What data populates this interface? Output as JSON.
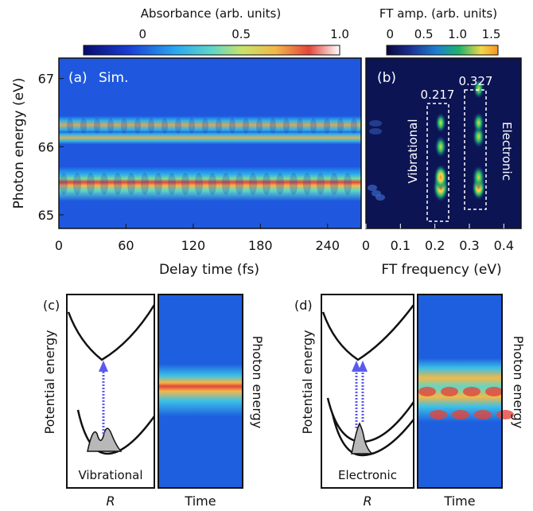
{
  "colorbar_left": {
    "title": "Absorbance (arb. units)",
    "ticks": [
      "0",
      "0.5",
      "1.0"
    ],
    "range": [
      -0.3,
      1.0
    ],
    "tick_values": [
      0,
      0.5,
      1.0
    ]
  },
  "colorbar_right": {
    "title": "FT amp. (arb. units)",
    "ticks": [
      "0",
      "0.5",
      "1.0",
      "1.5"
    ],
    "range": [
      -0.05,
      1.6
    ],
    "tick_values": [
      0,
      0.5,
      1.0,
      1.5
    ]
  },
  "panel_a": {
    "label": "(a)",
    "tag": "Sim.",
    "xlabel": "Delay time (fs)",
    "ylabel": "Photon energy (eV)",
    "xticks": [
      "0",
      "60",
      "120",
      "180",
      "240"
    ],
    "yticks": [
      "67",
      "66",
      "65"
    ]
  },
  "panel_b": {
    "label": "(b)",
    "xlabel": "FT frequency (eV)",
    "xticks": [
      "0",
      "0.1",
      "0.2",
      "0.3",
      "0.4"
    ],
    "box1_value": "0.217",
    "box2_value": "0.327",
    "box1_label": "Vibrational",
    "box2_label": "Electronic"
  },
  "panel_c": {
    "label": "(c)",
    "ylabel": "Potential energy",
    "xlabel": "R",
    "caption": "Vibrational",
    "right_ylabel": "Photon energy",
    "time_label": "Time"
  },
  "panel_d": {
    "label": "(d)",
    "ylabel": "Potential energy",
    "xlabel": "R",
    "caption": "Electronic",
    "right_ylabel": "Photon energy",
    "time_label": "Time"
  },
  "chart_data": [
    {
      "type": "heatmap",
      "panel": "(a)",
      "x": [
        0,
        270
      ],
      "y_range": [
        64.8,
        67.3
      ],
      "xlabel": "Delay time (fs)",
      "ylabel": "Photon energy (eV)",
      "bands": [
        {
          "energy": 65.4,
          "absorbance": 1.0
        },
        {
          "energy": 65.5,
          "absorbance": 0.55
        },
        {
          "energy": 66.15,
          "absorbance": 0.7
        },
        {
          "energy": 66.35,
          "absorbance": 0.55
        }
      ]
    },
    {
      "type": "heatmap",
      "panel": "(b)",
      "x_range": [
        0,
        0.45
      ],
      "xlabel": "FT frequency (eV)",
      "peaks": [
        {
          "freq": 0.217,
          "energy": 65.4,
          "amp": 1.5
        },
        {
          "freq": 0.217,
          "energy": 65.55,
          "amp": 1.2
        },
        {
          "freq": 0.217,
          "energy": 66.0,
          "amp": 0.8
        },
        {
          "freq": 0.217,
          "energy": 66.35,
          "amp": 0.6
        },
        {
          "freq": 0.327,
          "energy": 65.4,
          "amp": 1.1
        },
        {
          "freq": 0.327,
          "energy": 65.55,
          "amp": 1.0
        },
        {
          "freq": 0.327,
          "energy": 66.15,
          "amp": 0.9
        },
        {
          "freq": 0.327,
          "energy": 66.35,
          "amp": 0.7
        },
        {
          "freq": 0.327,
          "energy": 66.85,
          "amp": 0.6
        }
      ]
    }
  ]
}
